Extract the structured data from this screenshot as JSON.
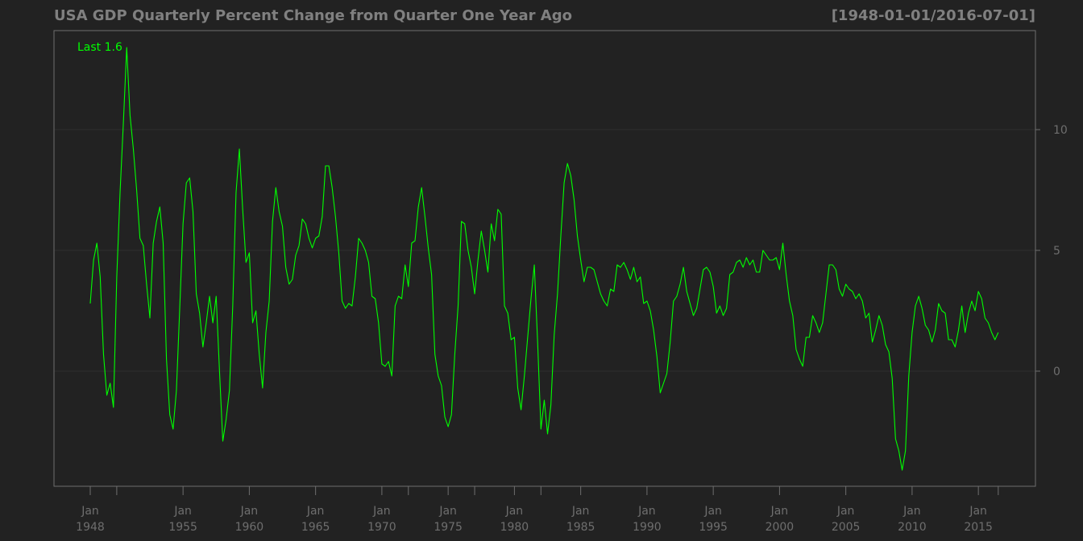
{
  "chart_data": {
    "type": "line",
    "title": "USA GDP Quarterly Percent Change from Quarter One Year Ago",
    "range_label": "[1948-01-01/2016-07-01]",
    "last_label": "Last 1.6",
    "xlabel": "",
    "ylabel": "",
    "ylim": [
      -4.8,
      14
    ],
    "y_ticks": [
      0,
      5,
      10
    ],
    "x_ticks": [
      {
        "year": 1948,
        "month": "Jan",
        "label": "1948"
      },
      {
        "year": 1955,
        "month": "Jan",
        "label": "1955"
      },
      {
        "year": 1960,
        "month": "Jan",
        "label": "1960"
      },
      {
        "year": 1965,
        "month": "Jan",
        "label": "1965"
      },
      {
        "year": 1970,
        "month": "Jan",
        "label": "1970"
      },
      {
        "year": 1975,
        "month": "Jan",
        "label": "1975"
      },
      {
        "year": 1980,
        "month": "Jan",
        "label": "1980"
      },
      {
        "year": 1985,
        "month": "Jan",
        "label": "1985"
      },
      {
        "year": 1990,
        "month": "Jan",
        "label": "1990"
      },
      {
        "year": 1995,
        "month": "Jan",
        "label": "1995"
      },
      {
        "year": 2000,
        "month": "Jan",
        "label": "2000"
      },
      {
        "year": 2005,
        "month": "Jan",
        "label": "2005"
      },
      {
        "year": 2010,
        "month": "Jan",
        "label": "2010"
      },
      {
        "year": 2015,
        "month": "Jan",
        "label": "2015"
      }
    ],
    "minor_tick_years": [
      1950,
      1972,
      1977,
      1982,
      2016.5
    ],
    "grid": true,
    "colors": {
      "background": "#222222",
      "line": "#00ff00",
      "grid": "#2e2e2e",
      "axis": "#6e6e6e",
      "text": "#808080"
    },
    "series": [
      {
        "values": [
          [
            1948.0,
            2.8
          ],
          [
            1948.25,
            4.6
          ],
          [
            1948.5,
            5.3
          ],
          [
            1948.75,
            3.9
          ],
          [
            1949.0,
            0.7
          ],
          [
            1949.25,
            -1.0
          ],
          [
            1949.5,
            -0.5
          ],
          [
            1949.75,
            -1.5
          ],
          [
            1950.0,
            3.9
          ],
          [
            1950.25,
            7.4
          ],
          [
            1950.5,
            10.3
          ],
          [
            1950.75,
            13.4
          ],
          [
            1951.0,
            10.6
          ],
          [
            1951.25,
            9.2
          ],
          [
            1951.5,
            7.5
          ],
          [
            1951.75,
            5.5
          ],
          [
            1952.0,
            5.2
          ],
          [
            1952.25,
            3.6
          ],
          [
            1952.5,
            2.2
          ],
          [
            1952.75,
            5.3
          ],
          [
            1953.0,
            6.2
          ],
          [
            1953.25,
            6.8
          ],
          [
            1953.5,
            5.3
          ],
          [
            1953.75,
            0.5
          ],
          [
            1954.0,
            -1.8
          ],
          [
            1954.25,
            -2.4
          ],
          [
            1954.5,
            -0.8
          ],
          [
            1954.75,
            2.6
          ],
          [
            1955.0,
            6.1
          ],
          [
            1955.25,
            7.8
          ],
          [
            1955.5,
            8.0
          ],
          [
            1955.75,
            6.6
          ],
          [
            1956.0,
            3.2
          ],
          [
            1956.25,
            2.4
          ],
          [
            1956.5,
            1.0
          ],
          [
            1956.75,
            2.0
          ],
          [
            1957.0,
            3.1
          ],
          [
            1957.25,
            2.0
          ],
          [
            1957.5,
            3.1
          ],
          [
            1957.75,
            0.0
          ],
          [
            1958.0,
            -2.9
          ],
          [
            1958.25,
            -2.0
          ],
          [
            1958.5,
            -0.8
          ],
          [
            1958.75,
            2.7
          ],
          [
            1959.0,
            7.4
          ],
          [
            1959.25,
            9.2
          ],
          [
            1959.5,
            6.7
          ],
          [
            1959.75,
            4.5
          ],
          [
            1960.0,
            4.9
          ],
          [
            1960.25,
            2.0
          ],
          [
            1960.5,
            2.5
          ],
          [
            1960.75,
            0.7
          ],
          [
            1961.0,
            -0.7
          ],
          [
            1961.25,
            1.6
          ],
          [
            1961.5,
            2.9
          ],
          [
            1961.75,
            6.2
          ],
          [
            1962.0,
            7.6
          ],
          [
            1962.25,
            6.6
          ],
          [
            1962.5,
            6.0
          ],
          [
            1962.75,
            4.3
          ],
          [
            1963.0,
            3.6
          ],
          [
            1963.25,
            3.8
          ],
          [
            1963.5,
            4.8
          ],
          [
            1963.75,
            5.2
          ],
          [
            1964.0,
            6.3
          ],
          [
            1964.25,
            6.1
          ],
          [
            1964.5,
            5.5
          ],
          [
            1964.75,
            5.1
          ],
          [
            1965.0,
            5.5
          ],
          [
            1965.25,
            5.6
          ],
          [
            1965.5,
            6.4
          ],
          [
            1965.75,
            8.5
          ],
          [
            1966.0,
            8.5
          ],
          [
            1966.25,
            7.6
          ],
          [
            1966.5,
            6.4
          ],
          [
            1966.75,
            4.9
          ],
          [
            1967.0,
            2.9
          ],
          [
            1967.25,
            2.6
          ],
          [
            1967.5,
            2.8
          ],
          [
            1967.75,
            2.7
          ],
          [
            1968.0,
            3.9
          ],
          [
            1968.25,
            5.5
          ],
          [
            1968.5,
            5.3
          ],
          [
            1968.75,
            5.0
          ],
          [
            1969.0,
            4.5
          ],
          [
            1969.25,
            3.1
          ],
          [
            1969.5,
            3.0
          ],
          [
            1969.75,
            2.0
          ],
          [
            1970.0,
            0.3
          ],
          [
            1970.25,
            0.2
          ],
          [
            1970.5,
            0.4
          ],
          [
            1970.75,
            -0.2
          ],
          [
            1971.0,
            2.7
          ],
          [
            1971.25,
            3.1
          ],
          [
            1971.5,
            3.0
          ],
          [
            1971.75,
            4.4
          ],
          [
            1972.0,
            3.5
          ],
          [
            1972.25,
            5.3
          ],
          [
            1972.5,
            5.4
          ],
          [
            1972.75,
            6.8
          ],
          [
            1973.0,
            7.6
          ],
          [
            1973.25,
            6.4
          ],
          [
            1973.5,
            5.1
          ],
          [
            1973.75,
            4.0
          ],
          [
            1974.0,
            0.7
          ],
          [
            1974.25,
            -0.2
          ],
          [
            1974.5,
            -0.6
          ],
          [
            1974.75,
            -1.9
          ],
          [
            1975.0,
            -2.3
          ],
          [
            1975.25,
            -1.8
          ],
          [
            1975.5,
            0.7
          ],
          [
            1975.75,
            2.7
          ],
          [
            1976.0,
            6.2
          ],
          [
            1976.25,
            6.1
          ],
          [
            1976.5,
            5.0
          ],
          [
            1976.75,
            4.3
          ],
          [
            1977.0,
            3.2
          ],
          [
            1977.25,
            4.6
          ],
          [
            1977.5,
            5.8
          ],
          [
            1977.75,
            5.0
          ],
          [
            1978.0,
            4.1
          ],
          [
            1978.25,
            6.1
          ],
          [
            1978.5,
            5.4
          ],
          [
            1978.75,
            6.7
          ],
          [
            1979.0,
            6.5
          ],
          [
            1979.25,
            2.7
          ],
          [
            1979.5,
            2.4
          ],
          [
            1979.75,
            1.3
          ],
          [
            1980.0,
            1.4
          ],
          [
            1980.25,
            -0.7
          ],
          [
            1980.5,
            -1.6
          ],
          [
            1980.75,
            -0.2
          ],
          [
            1981.0,
            1.4
          ],
          [
            1981.25,
            3.0
          ],
          [
            1981.5,
            4.4
          ],
          [
            1981.75,
            1.2
          ],
          [
            1982.0,
            -2.4
          ],
          [
            1982.25,
            -1.2
          ],
          [
            1982.5,
            -2.6
          ],
          [
            1982.75,
            -1.4
          ],
          [
            1983.0,
            1.5
          ],
          [
            1983.25,
            3.2
          ],
          [
            1983.5,
            5.6
          ],
          [
            1983.75,
            7.8
          ],
          [
            1984.0,
            8.6
          ],
          [
            1984.25,
            8.1
          ],
          [
            1984.5,
            7.1
          ],
          [
            1984.75,
            5.6
          ],
          [
            1985.0,
            4.6
          ],
          [
            1985.25,
            3.7
          ],
          [
            1985.5,
            4.3
          ],
          [
            1985.75,
            4.3
          ],
          [
            1986.0,
            4.2
          ],
          [
            1986.25,
            3.7
          ],
          [
            1986.5,
            3.2
          ],
          [
            1986.75,
            2.9
          ],
          [
            1987.0,
            2.7
          ],
          [
            1987.25,
            3.4
          ],
          [
            1987.5,
            3.3
          ],
          [
            1987.75,
            4.4
          ],
          [
            1988.0,
            4.3
          ],
          [
            1988.25,
            4.5
          ],
          [
            1988.5,
            4.2
          ],
          [
            1988.75,
            3.8
          ],
          [
            1989.0,
            4.3
          ],
          [
            1989.25,
            3.7
          ],
          [
            1989.5,
            3.9
          ],
          [
            1989.75,
            2.8
          ],
          [
            1990.0,
            2.9
          ],
          [
            1990.25,
            2.5
          ],
          [
            1990.5,
            1.7
          ],
          [
            1990.75,
            0.6
          ],
          [
            1991.0,
            -0.9
          ],
          [
            1991.25,
            -0.5
          ],
          [
            1991.5,
            -0.1
          ],
          [
            1991.75,
            1.2
          ],
          [
            1992.0,
            2.9
          ],
          [
            1992.25,
            3.1
          ],
          [
            1992.5,
            3.6
          ],
          [
            1992.75,
            4.3
          ],
          [
            1993.0,
            3.3
          ],
          [
            1993.25,
            2.8
          ],
          [
            1993.5,
            2.3
          ],
          [
            1993.75,
            2.6
          ],
          [
            1994.0,
            3.4
          ],
          [
            1994.25,
            4.2
          ],
          [
            1994.5,
            4.3
          ],
          [
            1994.75,
            4.1
          ],
          [
            1995.0,
            3.5
          ],
          [
            1995.25,
            2.4
          ],
          [
            1995.5,
            2.7
          ],
          [
            1995.75,
            2.3
          ],
          [
            1996.0,
            2.6
          ],
          [
            1996.25,
            4.0
          ],
          [
            1996.5,
            4.1
          ],
          [
            1996.75,
            4.5
          ],
          [
            1997.0,
            4.6
          ],
          [
            1997.25,
            4.3
          ],
          [
            1997.5,
            4.7
          ],
          [
            1997.75,
            4.4
          ],
          [
            1998.0,
            4.6
          ],
          [
            1998.25,
            4.1
          ],
          [
            1998.5,
            4.1
          ],
          [
            1998.75,
            5.0
          ],
          [
            1999.0,
            4.8
          ],
          [
            1999.25,
            4.6
          ],
          [
            1999.5,
            4.6
          ],
          [
            1999.75,
            4.7
          ],
          [
            2000.0,
            4.2
          ],
          [
            2000.25,
            5.3
          ],
          [
            2000.5,
            4.0
          ],
          [
            2000.75,
            2.9
          ],
          [
            2001.0,
            2.3
          ],
          [
            2001.25,
            0.9
          ],
          [
            2001.5,
            0.5
          ],
          [
            2001.75,
            0.2
          ],
          [
            2002.0,
            1.4
          ],
          [
            2002.25,
            1.4
          ],
          [
            2002.5,
            2.3
          ],
          [
            2002.75,
            2.0
          ],
          [
            2003.0,
            1.6
          ],
          [
            2003.25,
            2.0
          ],
          [
            2003.5,
            3.2
          ],
          [
            2003.75,
            4.4
          ],
          [
            2004.0,
            4.4
          ],
          [
            2004.25,
            4.2
          ],
          [
            2004.5,
            3.4
          ],
          [
            2004.75,
            3.1
          ],
          [
            2005.0,
            3.6
          ],
          [
            2005.25,
            3.4
          ],
          [
            2005.5,
            3.3
          ],
          [
            2005.75,
            3.0
          ],
          [
            2006.0,
            3.2
          ],
          [
            2006.25,
            2.9
          ],
          [
            2006.5,
            2.2
          ],
          [
            2006.75,
            2.4
          ],
          [
            2007.0,
            1.2
          ],
          [
            2007.25,
            1.7
          ],
          [
            2007.5,
            2.3
          ],
          [
            2007.75,
            1.9
          ],
          [
            2008.0,
            1.1
          ],
          [
            2008.25,
            0.8
          ],
          [
            2008.5,
            -0.3
          ],
          [
            2008.75,
            -2.8
          ],
          [
            2009.0,
            -3.3
          ],
          [
            2009.25,
            -4.1
          ],
          [
            2009.5,
            -3.3
          ],
          [
            2009.75,
            -0.2
          ],
          [
            2010.0,
            1.6
          ],
          [
            2010.25,
            2.7
          ],
          [
            2010.5,
            3.1
          ],
          [
            2010.75,
            2.6
          ],
          [
            2011.0,
            1.9
          ],
          [
            2011.25,
            1.7
          ],
          [
            2011.5,
            1.2
          ],
          [
            2011.75,
            1.7
          ],
          [
            2012.0,
            2.8
          ],
          [
            2012.25,
            2.5
          ],
          [
            2012.5,
            2.4
          ],
          [
            2012.75,
            1.3
          ],
          [
            2013.0,
            1.3
          ],
          [
            2013.25,
            1.0
          ],
          [
            2013.5,
            1.7
          ],
          [
            2013.75,
            2.7
          ],
          [
            2014.0,
            1.6
          ],
          [
            2014.25,
            2.4
          ],
          [
            2014.5,
            2.9
          ],
          [
            2014.75,
            2.5
          ],
          [
            2015.0,
            3.3
          ],
          [
            2015.25,
            3.0
          ],
          [
            2015.5,
            2.2
          ],
          [
            2015.75,
            2.0
          ],
          [
            2016.0,
            1.6
          ],
          [
            2016.25,
            1.3
          ],
          [
            2016.5,
            1.6
          ]
        ]
      }
    ]
  }
}
